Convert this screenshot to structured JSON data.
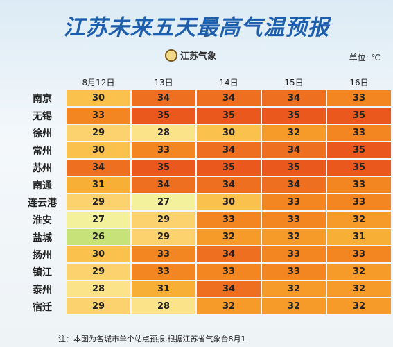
{
  "header": {
    "title": "江苏未来五天最高气温预报",
    "logo": "江苏气象",
    "unit": "单位: ℃"
  },
  "table": {
    "columns": [
      "8月12日",
      "13日",
      "14日",
      "15日",
      "16日"
    ],
    "rows": [
      {
        "city": "南京",
        "values": [
          30,
          34,
          34,
          34,
          33
        ]
      },
      {
        "city": "无锡",
        "values": [
          33,
          35,
          35,
          35,
          35
        ]
      },
      {
        "city": "徐州",
        "values": [
          29,
          28,
          30,
          32,
          33
        ]
      },
      {
        "city": "常州",
        "values": [
          30,
          33,
          34,
          34,
          35
        ]
      },
      {
        "city": "苏州",
        "values": [
          34,
          35,
          35,
          35,
          35
        ]
      },
      {
        "city": "南通",
        "values": [
          31,
          34,
          34,
          34,
          33
        ]
      },
      {
        "city": "连云港",
        "values": [
          29,
          27,
          30,
          33,
          33
        ]
      },
      {
        "city": "淮安",
        "values": [
          27,
          29,
          33,
          33,
          32
        ]
      },
      {
        "city": "盐城",
        "values": [
          26,
          29,
          32,
          32,
          31
        ]
      },
      {
        "city": "扬州",
        "values": [
          30,
          33,
          34,
          33,
          33
        ]
      },
      {
        "city": "镇江",
        "values": [
          29,
          33,
          33,
          33,
          32
        ]
      },
      {
        "city": "泰州",
        "values": [
          28,
          31,
          34,
          32,
          32
        ]
      },
      {
        "city": "宿迁",
        "values": [
          29,
          28,
          32,
          32,
          32
        ]
      }
    ]
  },
  "footnote": "注：本图为各城市单个站点预报,根据江苏省气象台8月1"
}
